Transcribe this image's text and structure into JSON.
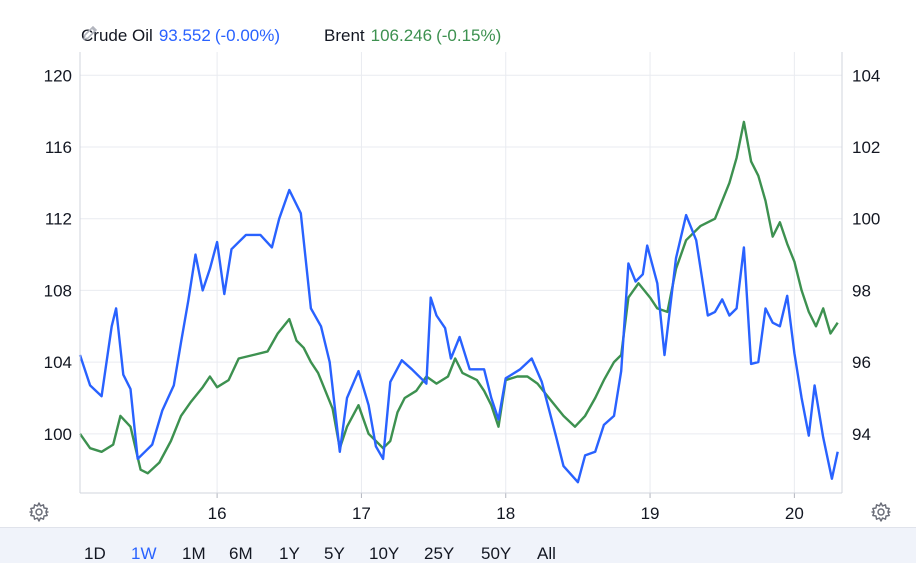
{
  "legend": {
    "items": [
      {
        "name": "Crude Oil",
        "value": "93.552",
        "change": "(-0.00%)",
        "color": "#2962ff"
      },
      {
        "name": "Brent",
        "value": "106.246",
        "change": "(-0.15%)",
        "color": "#3d9150"
      }
    ],
    "edit_icon": "pencil-icon"
  },
  "settings_icon": "gear-icon",
  "range_buttons": [
    "1D",
    "1W",
    "1M",
    "6M",
    "1Y",
    "5Y",
    "10Y",
    "25Y",
    "50Y",
    "All"
  ],
  "active_range": "1W",
  "chart_data": {
    "type": "line",
    "x_axis": {
      "ticks": [
        16,
        17,
        18,
        19,
        20
      ],
      "range": [
        15.05,
        20.33
      ]
    },
    "y_left": {
      "ticks": [
        100,
        104,
        108,
        112,
        116,
        120
      ],
      "range": [
        96.7,
        121.3
      ]
    },
    "y_right": {
      "ticks": [
        94,
        96,
        98,
        100,
        102,
        104
      ],
      "range": [
        92.35,
        104.65
      ]
    },
    "grid": true,
    "series": [
      {
        "name": "Crude Oil",
        "axis": "left",
        "color": "#2962ff",
        "points": [
          [
            15.05,
            104.4
          ],
          [
            15.12,
            102.7
          ],
          [
            15.2,
            102.1
          ],
          [
            15.27,
            106.0
          ],
          [
            15.3,
            107.0
          ],
          [
            15.35,
            103.3
          ],
          [
            15.4,
            102.5
          ],
          [
            15.45,
            98.6
          ],
          [
            15.5,
            99.0
          ],
          [
            15.55,
            99.4
          ],
          [
            15.62,
            101.3
          ],
          [
            15.7,
            102.7
          ],
          [
            15.75,
            105.1
          ],
          [
            15.8,
            107.4
          ],
          [
            15.85,
            110.0
          ],
          [
            15.9,
            108.0
          ],
          [
            15.95,
            109.2
          ],
          [
            16.0,
            110.7
          ],
          [
            16.05,
            107.8
          ],
          [
            16.1,
            110.3
          ],
          [
            16.2,
            111.1
          ],
          [
            16.3,
            111.1
          ],
          [
            16.38,
            110.4
          ],
          [
            16.43,
            112.0
          ],
          [
            16.5,
            113.6
          ],
          [
            16.58,
            112.3
          ],
          [
            16.65,
            107.0
          ],
          [
            16.72,
            106.0
          ],
          [
            16.78,
            104.0
          ],
          [
            16.85,
            99.0
          ],
          [
            16.9,
            102.0
          ],
          [
            16.98,
            103.5
          ],
          [
            17.05,
            101.6
          ],
          [
            17.1,
            99.3
          ],
          [
            17.15,
            98.6
          ],
          [
            17.2,
            102.9
          ],
          [
            17.28,
            104.1
          ],
          [
            17.35,
            103.6
          ],
          [
            17.45,
            102.8
          ],
          [
            17.48,
            107.6
          ],
          [
            17.52,
            106.6
          ],
          [
            17.58,
            105.9
          ],
          [
            17.62,
            104.2
          ],
          [
            17.68,
            105.4
          ],
          [
            17.75,
            103.6
          ],
          [
            17.85,
            103.6
          ],
          [
            17.9,
            102.0
          ],
          [
            17.95,
            100.8
          ],
          [
            18.0,
            103.1
          ],
          [
            18.1,
            103.6
          ],
          [
            18.18,
            104.2
          ],
          [
            18.25,
            102.9
          ],
          [
            18.35,
            99.8
          ],
          [
            18.4,
            98.2
          ],
          [
            18.5,
            97.3
          ],
          [
            18.55,
            98.8
          ],
          [
            18.62,
            99.0
          ],
          [
            18.68,
            100.5
          ],
          [
            18.75,
            101.0
          ],
          [
            18.8,
            103.5
          ],
          [
            18.85,
            109.5
          ],
          [
            18.9,
            108.5
          ],
          [
            18.95,
            108.9
          ],
          [
            18.98,
            110.5
          ],
          [
            19.05,
            108.4
          ],
          [
            19.1,
            104.4
          ],
          [
            19.18,
            109.8
          ],
          [
            19.25,
            112.2
          ],
          [
            19.32,
            110.8
          ],
          [
            19.4,
            106.6
          ],
          [
            19.45,
            106.8
          ],
          [
            19.5,
            107.5
          ],
          [
            19.55,
            106.6
          ],
          [
            19.6,
            107.0
          ],
          [
            19.65,
            110.4
          ],
          [
            19.7,
            103.9
          ],
          [
            19.75,
            104.0
          ],
          [
            19.8,
            107.0
          ],
          [
            19.85,
            106.2
          ],
          [
            19.9,
            106.0
          ],
          [
            19.95,
            107.7
          ],
          [
            20.0,
            104.5
          ],
          [
            20.05,
            102.0
          ],
          [
            20.1,
            99.9
          ],
          [
            20.14,
            102.7
          ],
          [
            20.2,
            99.8
          ],
          [
            20.26,
            97.5
          ],
          [
            20.3,
            99.0
          ]
        ]
      },
      {
        "name": "Brent",
        "axis": "right",
        "color": "#3d9150",
        "points": [
          [
            15.05,
            94.0
          ],
          [
            15.12,
            93.6
          ],
          [
            15.2,
            93.5
          ],
          [
            15.28,
            93.7
          ],
          [
            15.33,
            94.5
          ],
          [
            15.4,
            94.2
          ],
          [
            15.47,
            93.0
          ],
          [
            15.52,
            92.9
          ],
          [
            15.6,
            93.2
          ],
          [
            15.68,
            93.8
          ],
          [
            15.75,
            94.5
          ],
          [
            15.82,
            94.9
          ],
          [
            15.9,
            95.3
          ],
          [
            15.95,
            95.6
          ],
          [
            16.0,
            95.3
          ],
          [
            16.08,
            95.5
          ],
          [
            16.15,
            96.1
          ],
          [
            16.25,
            96.2
          ],
          [
            16.35,
            96.3
          ],
          [
            16.42,
            96.8
          ],
          [
            16.5,
            97.2
          ],
          [
            16.55,
            96.6
          ],
          [
            16.6,
            96.4
          ],
          [
            16.65,
            96.0
          ],
          [
            16.7,
            95.7
          ],
          [
            16.8,
            94.7
          ],
          [
            16.85,
            93.6
          ],
          [
            16.9,
            94.2
          ],
          [
            16.98,
            94.8
          ],
          [
            17.05,
            94.0
          ],
          [
            17.15,
            93.6
          ],
          [
            17.2,
            93.8
          ],
          [
            17.25,
            94.6
          ],
          [
            17.3,
            95.0
          ],
          [
            17.38,
            95.2
          ],
          [
            17.45,
            95.6
          ],
          [
            17.52,
            95.4
          ],
          [
            17.6,
            95.6
          ],
          [
            17.65,
            96.1
          ],
          [
            17.7,
            95.7
          ],
          [
            17.8,
            95.5
          ],
          [
            17.85,
            95.2
          ],
          [
            17.9,
            94.8
          ],
          [
            17.95,
            94.2
          ],
          [
            18.0,
            95.5
          ],
          [
            18.08,
            95.6
          ],
          [
            18.15,
            95.6
          ],
          [
            18.22,
            95.4
          ],
          [
            18.3,
            95.0
          ],
          [
            18.4,
            94.5
          ],
          [
            18.48,
            94.2
          ],
          [
            18.55,
            94.5
          ],
          [
            18.62,
            95.0
          ],
          [
            18.68,
            95.5
          ],
          [
            18.75,
            96.0
          ],
          [
            18.8,
            96.2
          ],
          [
            18.85,
            97.8
          ],
          [
            18.92,
            98.2
          ],
          [
            19.0,
            97.8
          ],
          [
            19.05,
            97.5
          ],
          [
            19.12,
            97.4
          ],
          [
            19.18,
            98.6
          ],
          [
            19.25,
            99.4
          ],
          [
            19.35,
            99.8
          ],
          [
            19.45,
            100.0
          ],
          [
            19.5,
            100.5
          ],
          [
            19.55,
            101.0
          ],
          [
            19.6,
            101.7
          ],
          [
            19.65,
            102.7
          ],
          [
            19.7,
            101.6
          ],
          [
            19.75,
            101.2
          ],
          [
            19.8,
            100.5
          ],
          [
            19.85,
            99.5
          ],
          [
            19.9,
            99.9
          ],
          [
            19.95,
            99.3
          ],
          [
            20.0,
            98.8
          ],
          [
            20.05,
            98.0
          ],
          [
            20.1,
            97.4
          ],
          [
            20.15,
            97.0
          ],
          [
            20.2,
            97.5
          ],
          [
            20.25,
            96.8
          ],
          [
            20.3,
            97.1
          ]
        ]
      }
    ]
  }
}
